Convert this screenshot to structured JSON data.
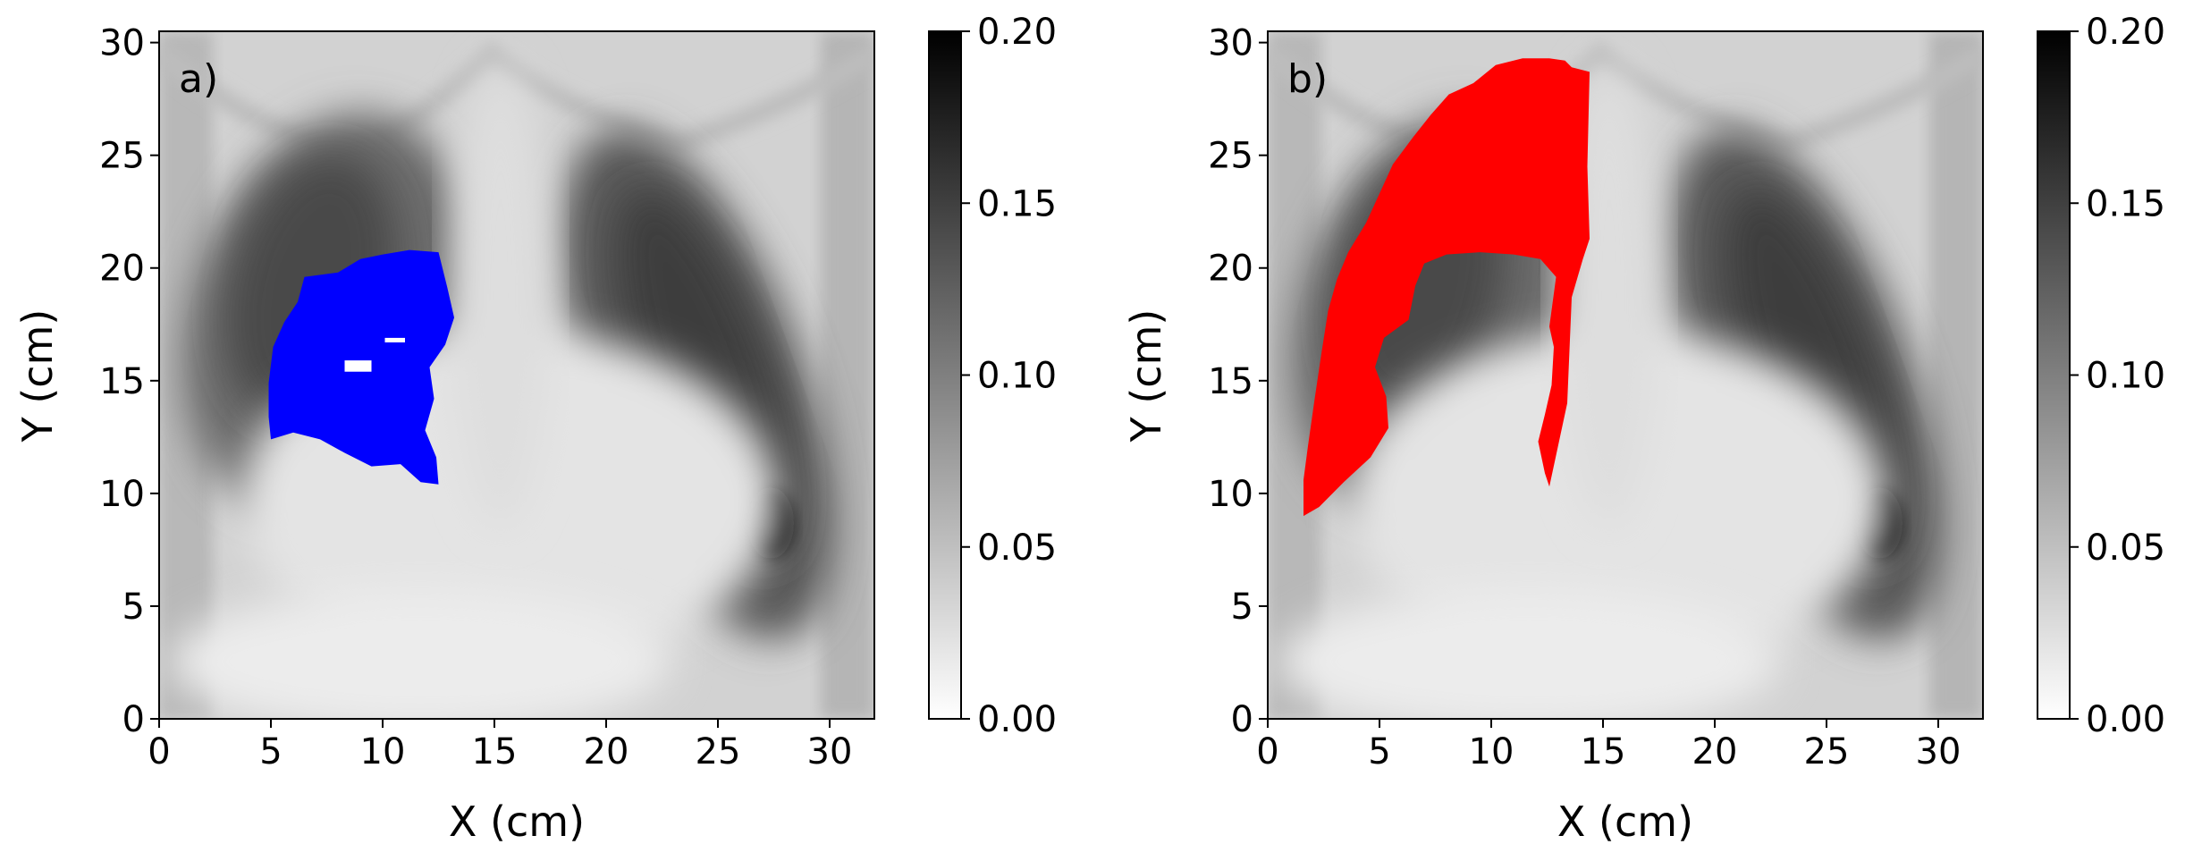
{
  "chart_data": [
    {
      "type": "heatmap",
      "panel_label": "a)",
      "xlabel": "X (cm)",
      "ylabel": "Y (cm)",
      "xlim": [
        0,
        32
      ],
      "ylim": [
        0,
        30.5
      ],
      "xticks": [
        0,
        5,
        10,
        15,
        20,
        25,
        30
      ],
      "yticks": [
        0,
        5,
        10,
        15,
        20,
        25,
        30
      ],
      "colormap": "grayscale (white = 0.00, black = 0.20)",
      "colorbar": {
        "range": [
          0.0,
          0.2
        ],
        "ticks": [
          "0.00",
          "0.05",
          "0.10",
          "0.15",
          "0.20"
        ]
      },
      "overlay": {
        "color": "#0000ff",
        "outline_xy_cm": [
          [
            5.0,
            12.4
          ],
          [
            6.0,
            12.7
          ],
          [
            7.2,
            12.4
          ],
          [
            8.3,
            11.8
          ],
          [
            9.5,
            11.2
          ],
          [
            10.8,
            11.3
          ],
          [
            11.7,
            10.5
          ],
          [
            12.5,
            10.4
          ],
          [
            12.4,
            11.6
          ],
          [
            11.9,
            12.8
          ],
          [
            12.3,
            14.2
          ],
          [
            12.1,
            15.6
          ],
          [
            12.8,
            16.6
          ],
          [
            13.2,
            17.8
          ],
          [
            12.9,
            19.1
          ],
          [
            12.5,
            20.7
          ],
          [
            11.2,
            20.8
          ],
          [
            10.0,
            20.6
          ],
          [
            9.0,
            20.4
          ],
          [
            8.0,
            19.8
          ],
          [
            6.5,
            19.6
          ],
          [
            6.2,
            18.5
          ],
          [
            5.6,
            17.6
          ],
          [
            5.1,
            16.5
          ],
          [
            4.9,
            14.9
          ],
          [
            4.9,
            13.4
          ]
        ],
        "holes_xy_cm": [
          {
            "x": [
              8.3,
              9.5
            ],
            "y": [
              15.4,
              15.9
            ]
          },
          {
            "x": [
              10.1,
              11.0
            ],
            "y": [
              16.7,
              16.9
            ]
          }
        ]
      }
    },
    {
      "type": "heatmap",
      "panel_label": "b)",
      "xlabel": "X (cm)",
      "ylabel": "Y (cm)",
      "xlim": [
        0,
        32
      ],
      "ylim": [
        0,
        30.5
      ],
      "xticks": [
        0,
        5,
        10,
        15,
        20,
        25,
        30
      ],
      "yticks": [
        0,
        5,
        10,
        15,
        20,
        25,
        30
      ],
      "colormap": "grayscale (white = 0.00, black = 0.20)",
      "colorbar": {
        "range": [
          0.0,
          0.2
        ],
        "ticks": [
          "0.00",
          "0.05",
          "0.10",
          "0.15",
          "0.20"
        ]
      },
      "overlay": {
        "color": "#ff0000",
        "outline_xy_cm": [
          [
            1.6,
            9.0
          ],
          [
            2.3,
            9.4
          ],
          [
            3.4,
            10.5
          ],
          [
            4.6,
            11.6
          ],
          [
            5.4,
            12.9
          ],
          [
            5.3,
            14.3
          ],
          [
            4.8,
            15.6
          ],
          [
            5.2,
            16.9
          ],
          [
            6.3,
            17.7
          ],
          [
            6.6,
            19.2
          ],
          [
            7.0,
            20.2
          ],
          [
            8.0,
            20.6
          ],
          [
            9.5,
            20.7
          ],
          [
            11.0,
            20.6
          ],
          [
            12.2,
            20.4
          ],
          [
            12.9,
            19.6
          ],
          [
            12.6,
            17.4
          ],
          [
            12.8,
            16.5
          ],
          [
            12.7,
            14.8
          ],
          [
            12.4,
            13.5
          ],
          [
            12.1,
            12.3
          ],
          [
            12.4,
            10.9
          ],
          [
            12.6,
            10.3
          ],
          [
            13.4,
            14.0
          ],
          [
            13.6,
            18.7
          ],
          [
            14.1,
            20.4
          ],
          [
            14.4,
            21.3
          ],
          [
            14.3,
            24.5
          ],
          [
            14.4,
            28.7
          ],
          [
            13.6,
            28.9
          ],
          [
            13.3,
            29.2
          ],
          [
            12.6,
            29.3
          ],
          [
            11.4,
            29.3
          ],
          [
            10.2,
            29.0
          ],
          [
            9.2,
            28.2
          ],
          [
            8.1,
            27.7
          ],
          [
            7.3,
            26.8
          ],
          [
            6.5,
            25.8
          ],
          [
            5.6,
            24.6
          ],
          [
            5.0,
            23.3
          ],
          [
            4.4,
            22.0
          ],
          [
            3.6,
            20.7
          ],
          [
            3.1,
            19.5
          ],
          [
            2.7,
            18.1
          ],
          [
            2.4,
            16.2
          ],
          [
            2.1,
            14.2
          ],
          [
            1.8,
            12.1
          ],
          [
            1.6,
            10.6
          ]
        ]
      }
    }
  ]
}
